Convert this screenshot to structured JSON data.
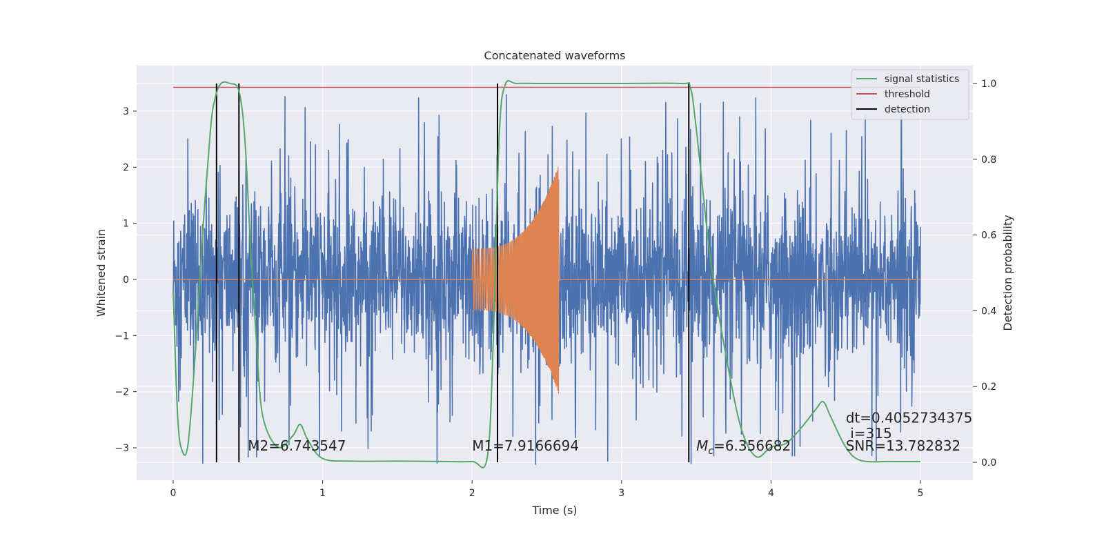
{
  "chart_data": {
    "type": "line",
    "title": "Concatenated waveforms",
    "xlabel": "Time (s)",
    "ylabel": "Whitened strain",
    "y2label": "Detection probability",
    "xlim": [
      -0.25,
      5.35
    ],
    "ylim": [
      -3.5,
      3.6
    ],
    "y2lim": [
      -0.04,
      1.045
    ],
    "xticks": [
      0,
      1,
      2,
      3,
      4,
      5
    ],
    "yticks": [
      -3,
      -2,
      -1,
      0,
      1,
      2,
      3
    ],
    "y2ticks": [
      0.0,
      0.2,
      0.4,
      0.6,
      0.8,
      1.0
    ],
    "xtick_labels": [
      "0",
      "1",
      "2",
      "3",
      "4",
      "5"
    ],
    "ytick_labels": [
      "−3",
      "−2",
      "−1",
      "0",
      "1",
      "2",
      "3"
    ],
    "y2tick_labels": [
      "0.0",
      "0.2",
      "0.4",
      "0.6",
      "0.8",
      "1.0"
    ],
    "grid": true,
    "legend_position": "top-right",
    "legend": [
      "signal statistics",
      "threshold",
      "detection"
    ],
    "colors": {
      "strain": "#4c72b0",
      "template": "#dd8452",
      "signal_statistics": "#55a868",
      "threshold": "#c44e52",
      "detection": "#000000",
      "axes_bg": "#eaeaf2",
      "grid": "#ffffff"
    },
    "series": [
      {
        "name": "signal statistics",
        "axis": "right",
        "x": [
          0.0,
          0.03,
          0.06,
          0.1,
          0.15,
          0.2,
          0.25,
          0.28,
          0.32,
          0.38,
          0.44,
          0.48,
          0.52,
          0.56,
          0.6,
          0.7,
          0.8,
          0.85,
          0.9,
          1.0,
          1.2,
          1.5,
          1.8,
          2.0,
          2.1,
          2.14,
          2.18,
          2.22,
          2.3,
          2.5,
          3.0,
          3.4,
          3.46,
          3.5,
          3.6,
          3.7,
          3.8,
          3.9,
          4.0,
          4.1,
          4.2,
          4.3,
          4.35,
          4.4,
          4.5,
          4.6,
          4.8,
          5.0
        ],
        "y": [
          0.45,
          0.12,
          0.03,
          0.05,
          0.3,
          0.62,
          0.88,
          0.96,
          1.0,
          1.0,
          0.98,
          0.85,
          0.55,
          0.3,
          0.12,
          0.04,
          0.07,
          0.1,
          0.06,
          0.01,
          0.003,
          0.003,
          0.002,
          0.002,
          0.01,
          0.3,
          0.85,
          0.995,
          1.0,
          1.0,
          1.0,
          1.0,
          0.99,
          0.88,
          0.52,
          0.28,
          0.09,
          0.015,
          0.04,
          0.05,
          0.09,
          0.14,
          0.16,
          0.12,
          0.04,
          0.005,
          0.002,
          0.002
        ]
      },
      {
        "name": "threshold",
        "axis": "right",
        "x": [
          0,
          5
        ],
        "y": [
          0.99,
          0.99
        ]
      }
    ],
    "detections": [
      0.29,
      0.44,
      2.17,
      3.45
    ],
    "template_window": [
      2.0,
      2.58
    ],
    "strain_range": {
      "x": [
        0,
        5
      ],
      "y_typical": [
        -1.7,
        1.7
      ]
    },
    "annotations": [
      {
        "text": "M2=6.743547",
        "x": 0.5,
        "y": -3.05
      },
      {
        "text": "M1=7.9166694",
        "x": 2.0,
        "y": -3.05
      },
      {
        "text_main": "M",
        "text_sub": "c",
        "text_rest": "=6.356682",
        "x": 3.5,
        "y": -3.05
      },
      {
        "text": "dt=0.4052734375",
        "x": 4.5,
        "y": -2.55
      },
      {
        "text": "i=315",
        "x": 4.53,
        "y": -2.83
      },
      {
        "text": "SNR=13.782832",
        "x": 4.5,
        "y": -3.05
      }
    ]
  }
}
